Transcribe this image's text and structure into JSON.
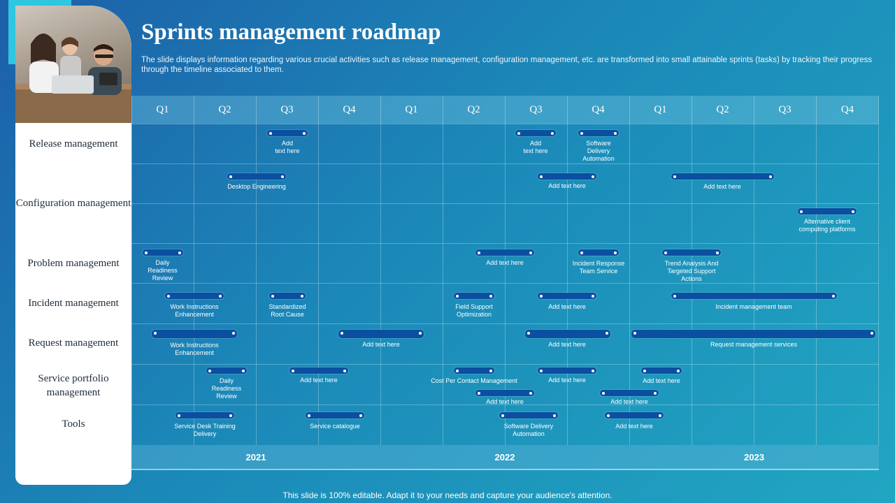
{
  "title": "Sprints management roadmap",
  "subtitle": "The slide displays information regarding various crucial activities such as release management, configuration management, etc. are transformed into small attainable sprints (tasks) by tracking their progress through the timeline associated to them.",
  "quarters": [
    "Q1",
    "Q2",
    "Q3",
    "Q4",
    "Q1",
    "Q2",
    "Q3",
    "Q4",
    "Q1",
    "Q2",
    "Q3",
    "Q4"
  ],
  "years": [
    "2021",
    "2022",
    "2023"
  ],
  "rows": [
    "Release management",
    "Configuration management",
    "Problem management",
    "Incident management",
    "Request management",
    "Service portfolio management",
    "Tools"
  ],
  "tasks": {
    "release_1": "Add\ntext here",
    "release_2": "Add\ntext here",
    "release_3": "Software\nDelivery\nAutomation",
    "config_1": "Desktop Engineering",
    "config_2": "Add text here",
    "config_3": "Add text here",
    "config_4": "Alternative client\ncomputing platforms",
    "problem_1": "Daily\nReadiness\nReview",
    "problem_2": "Add text here",
    "problem_3": "Incident Response\nTeam Service",
    "problem_4": "Trend Analysis And\nTargeted Support\nActions",
    "incident_1": "Work Instructions\nEnhancement",
    "incident_2": "Standardized\nRoot Cause",
    "incident_3": "Field Support\nOptimization",
    "incident_4": "Add text here",
    "incident_5": "Incident management team",
    "request_1": "Work Instructions\nEnhancement",
    "request_2": "Add text here",
    "request_3": "Add text here",
    "request_4": "Request management services",
    "portfolio_1": "Daily\nReadiness\nReview",
    "portfolio_2": "Add text here",
    "portfolio_3": "Cost Per Contact Management",
    "portfolio_4": "Add text here",
    "portfolio_5": "Add text here",
    "portfolio_6": "Add text here",
    "portfolio_7": "Add text here",
    "tools_1": "Service Desk Training\nDelivery",
    "tools_2": "Service catalogue",
    "tools_3": "Software Delivery\nAutomation",
    "tools_4": "Add text here"
  },
  "footer": "This slide is 100% editable. Adapt it to your needs and capture your audience's attention.",
  "colors": {
    "bar": "#0b4fa0",
    "panel": "#ffffff",
    "accent": "#2fc6df"
  }
}
